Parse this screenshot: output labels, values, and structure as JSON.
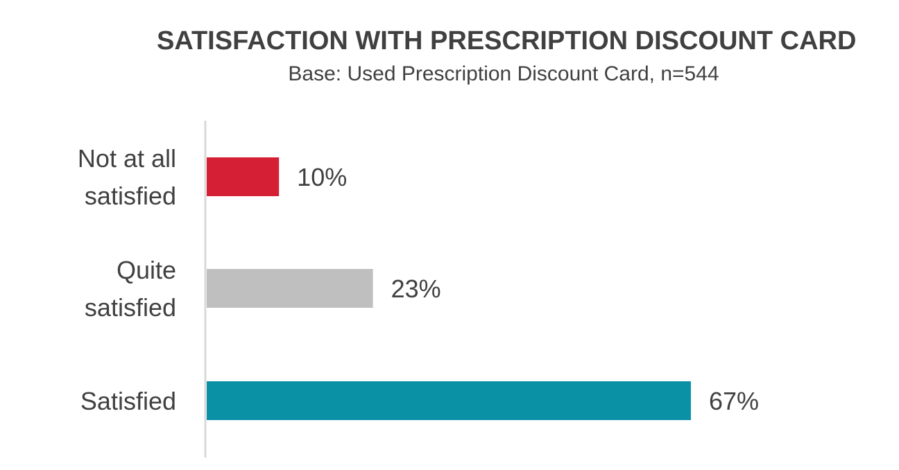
{
  "chart_data": {
    "type": "bar",
    "orientation": "horizontal",
    "title": "SATISFACTION WITH PRESCRIPTION DISCOUNT CARD",
    "subtitle": "Base: Used Prescription Discount Card, n=544",
    "categories": [
      [
        "Not at all",
        "satisfied"
      ],
      [
        "Quite",
        "satisfied"
      ],
      [
        "Satisfied"
      ]
    ],
    "values": [
      10,
      23,
      67
    ],
    "value_labels": [
      "10%",
      "23%",
      "67%"
    ],
    "colors": [
      "#D51F35",
      "#BFBFBF",
      "#0A91A6"
    ],
    "xlim": [
      0,
      67
    ],
    "grid": false,
    "legend": "none"
  }
}
